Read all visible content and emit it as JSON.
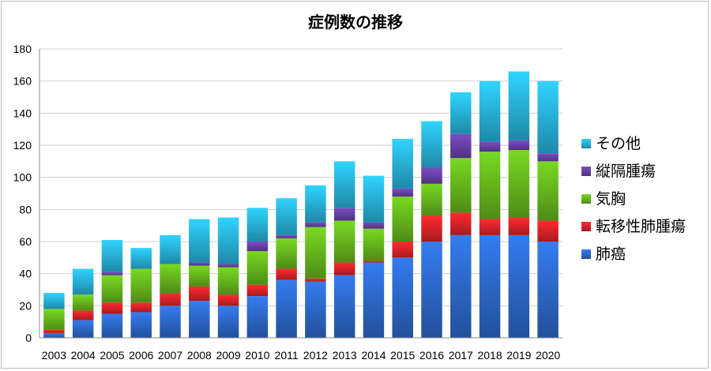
{
  "chart_data": {
    "type": "bar",
    "stacked": true,
    "title": "症例数の推移",
    "xlabel": "",
    "ylabel": "",
    "ylim": [
      0,
      180
    ],
    "ytick_step": 20,
    "grid": true,
    "legend_position": "right",
    "categories": [
      "2003",
      "2004",
      "2005",
      "2006",
      "2007",
      "2008",
      "2009",
      "2010",
      "2011",
      "2012",
      "2013",
      "2014",
      "2015",
      "2016",
      "2017",
      "2018",
      "2019",
      "2020"
    ],
    "series": [
      {
        "name": "肺癌",
        "color": "#2f6fd6",
        "values": [
          3,
          11,
          15,
          16,
          20,
          23,
          20,
          26,
          36,
          35,
          39,
          47,
          50,
          60,
          64,
          64,
          64,
          60
        ]
      },
      {
        "name": "転移性肺腫瘍",
        "color": "#e8262b",
        "values": [
          2,
          6,
          7,
          6,
          8,
          9,
          7,
          7,
          7,
          2,
          8,
          1,
          10,
          16,
          14,
          10,
          11,
          13
        ]
      },
      {
        "name": "気胸",
        "color": "#6cc21e",
        "values": [
          13,
          10,
          17,
          21,
          18,
          13,
          17,
          21,
          19,
          32,
          26,
          20,
          28,
          20,
          34,
          42,
          42,
          37
        ]
      },
      {
        "name": "縦隔腫瘍",
        "color": "#6e45b0",
        "values": [
          0,
          0,
          2,
          0,
          0,
          2,
          2,
          6,
          2,
          3,
          8,
          4,
          5,
          10,
          15,
          6,
          6,
          5
        ]
      },
      {
        "name": "その他",
        "color": "#2bbde8",
        "values": [
          10,
          16,
          20,
          13,
          18,
          27,
          29,
          21,
          23,
          23,
          29,
          29,
          31,
          29,
          26,
          38,
          43,
          45
        ]
      }
    ],
    "legend_order": [
      "その他",
      "縦隔腫瘍",
      "気胸",
      "転移性肺腫瘍",
      "肺癌"
    ]
  }
}
